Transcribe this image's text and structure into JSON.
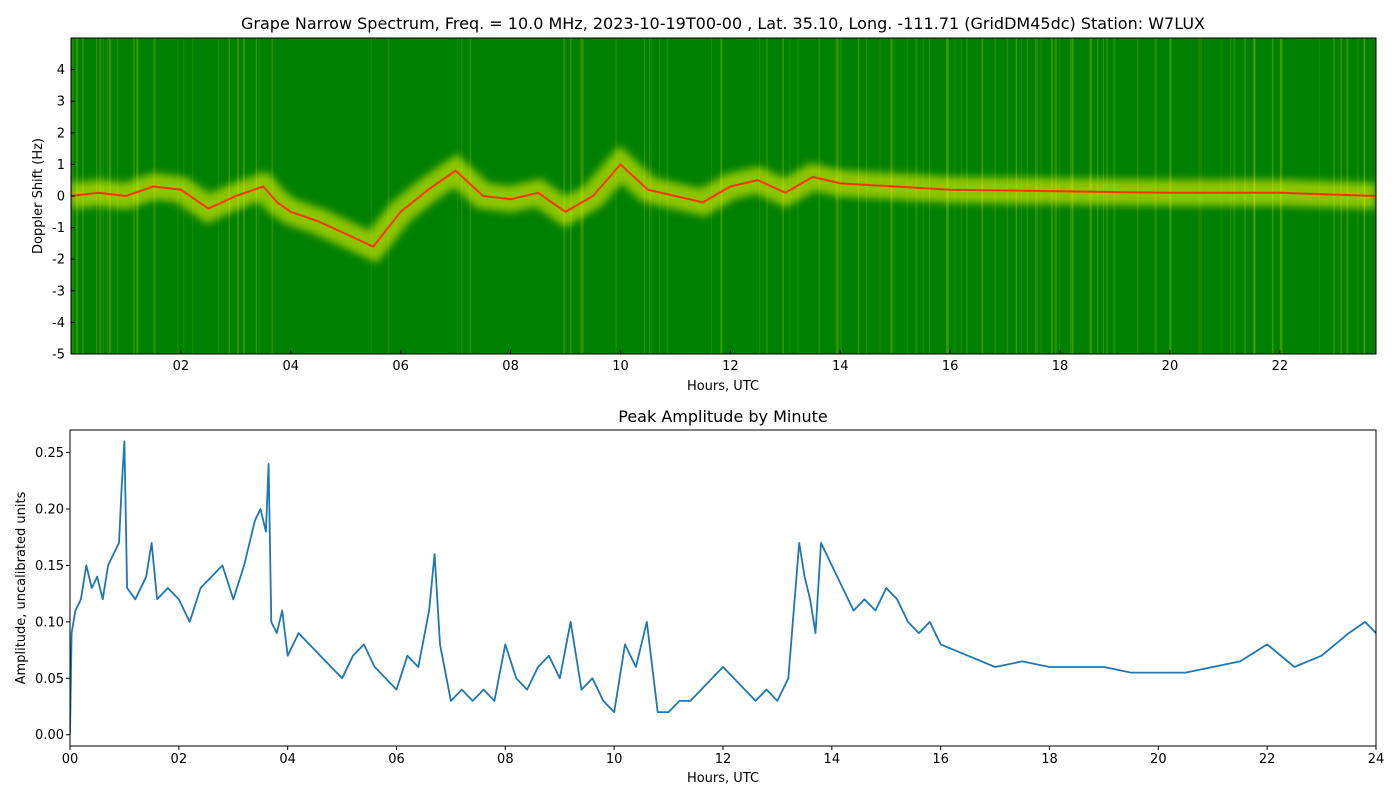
{
  "chart_data": [
    {
      "type": "heatmap",
      "title": "Grape Narrow Spectrum, Freq. = 10.0 MHz, 2023-10-19T00-00 , Lat.  35.10, Long. -111.71 (GridDM45dc) Station: W7LUX",
      "xlabel": "Hours, UTC",
      "ylabel": "Doppler Shift (Hz)",
      "xlim": [
        0,
        23.75
      ],
      "ylim": [
        -5,
        5
      ],
      "x_ticks": [
        "02",
        "04",
        "06",
        "08",
        "10",
        "12",
        "14",
        "16",
        "18",
        "20",
        "22"
      ],
      "x_tick_values": [
        2,
        4,
        6,
        8,
        10,
        12,
        14,
        16,
        18,
        20,
        22
      ],
      "y_ticks": [
        "4",
        "3",
        "2",
        "1",
        "0",
        "-1",
        "-2",
        "-3",
        "-4",
        "-5"
      ],
      "y_tick_values": [
        4,
        3,
        2,
        1,
        0,
        -1,
        -2,
        -3,
        -4,
        -5
      ],
      "colors": {
        "background": "#008000",
        "spread": "#ffff00",
        "peak": "#ff3300"
      },
      "grid": false,
      "carrier_trace": {
        "x": [
          0,
          0.5,
          1.0,
          1.5,
          2.0,
          2.5,
          3.0,
          3.5,
          3.75,
          4.0,
          4.5,
          5.0,
          5.5,
          6.0,
          6.5,
          7.0,
          7.5,
          8.0,
          8.5,
          9.0,
          9.5,
          10.0,
          10.5,
          11.0,
          11.5,
          12.0,
          12.5,
          13.0,
          13.5,
          14.0,
          15.0,
          16.0,
          18.0,
          20.0,
          22.0,
          23.75
        ],
        "y": [
          0.0,
          0.1,
          0.0,
          0.3,
          0.2,
          -0.4,
          0.0,
          0.3,
          -0.2,
          -0.5,
          -0.8,
          -1.2,
          -1.6,
          -0.5,
          0.2,
          0.8,
          0.0,
          -0.1,
          0.1,
          -0.5,
          0.0,
          1.0,
          0.2,
          0.0,
          -0.2,
          0.3,
          0.5,
          0.1,
          0.6,
          0.4,
          0.3,
          0.2,
          0.15,
          0.1,
          0.1,
          0.0
        ]
      }
    },
    {
      "type": "line",
      "title": "Peak Amplitude by Minute",
      "xlabel": "Hours, UTC",
      "ylabel": "Amplitude, uncalibrated units",
      "xlim": [
        0,
        24
      ],
      "ylim": [
        -0.01,
        0.27
      ],
      "x_ticks": [
        "00",
        "02",
        "04",
        "06",
        "08",
        "10",
        "12",
        "14",
        "16",
        "18",
        "20",
        "22",
        "24"
      ],
      "x_tick_values": [
        0,
        2,
        4,
        6,
        8,
        10,
        12,
        14,
        16,
        18,
        20,
        22,
        24
      ],
      "y_ticks": [
        "0.00",
        "0.05",
        "0.10",
        "0.15",
        "0.20",
        "0.25"
      ],
      "y_tick_values": [
        0,
        0.05,
        0.1,
        0.15,
        0.2,
        0.25
      ],
      "grid": false,
      "colors": {
        "line": "#1f77b4"
      },
      "series": [
        {
          "x": [
            0,
            0.03,
            0.1,
            0.2,
            0.3,
            0.4,
            0.5,
            0.6,
            0.7,
            0.8,
            0.9,
            0.95,
            1.0,
            1.05,
            1.2,
            1.4,
            1.5,
            1.6,
            1.8,
            2.0,
            2.2,
            2.4,
            2.6,
            2.8,
            3.0,
            3.2,
            3.4,
            3.5,
            3.6,
            3.65,
            3.7,
            3.8,
            3.9,
            4.0,
            4.2,
            4.4,
            4.6,
            4.8,
            5.0,
            5.2,
            5.4,
            5.6,
            5.8,
            6.0,
            6.2,
            6.4,
            6.6,
            6.7,
            6.8,
            7.0,
            7.2,
            7.4,
            7.6,
            7.8,
            8.0,
            8.2,
            8.4,
            8.6,
            8.8,
            9.0,
            9.2,
            9.4,
            9.6,
            9.8,
            10.0,
            10.2,
            10.4,
            10.6,
            10.8,
            11.0,
            11.2,
            11.4,
            11.6,
            11.8,
            12.0,
            12.2,
            12.4,
            12.6,
            12.8,
            13.0,
            13.2,
            13.4,
            13.5,
            13.6,
            13.7,
            13.8,
            14.0,
            14.2,
            14.4,
            14.6,
            14.8,
            15.0,
            15.2,
            15.4,
            15.6,
            15.8,
            16.0,
            16.5,
            17.0,
            17.5,
            18.0,
            18.5,
            19.0,
            19.5,
            20.0,
            20.5,
            21.0,
            21.5,
            22.0,
            22.5,
            23.0,
            23.5,
            23.8,
            24.0
          ],
          "values": [
            0.0,
            0.09,
            0.11,
            0.12,
            0.15,
            0.13,
            0.14,
            0.12,
            0.15,
            0.16,
            0.17,
            0.22,
            0.26,
            0.13,
            0.12,
            0.14,
            0.17,
            0.12,
            0.13,
            0.12,
            0.1,
            0.13,
            0.14,
            0.15,
            0.12,
            0.15,
            0.19,
            0.2,
            0.18,
            0.24,
            0.1,
            0.09,
            0.11,
            0.07,
            0.09,
            0.08,
            0.07,
            0.06,
            0.05,
            0.07,
            0.08,
            0.06,
            0.05,
            0.04,
            0.07,
            0.06,
            0.11,
            0.16,
            0.08,
            0.03,
            0.04,
            0.03,
            0.04,
            0.03,
            0.08,
            0.05,
            0.04,
            0.06,
            0.07,
            0.05,
            0.1,
            0.04,
            0.05,
            0.03,
            0.02,
            0.08,
            0.06,
            0.1,
            0.02,
            0.02,
            0.03,
            0.03,
            0.04,
            0.05,
            0.06,
            0.05,
            0.04,
            0.03,
            0.04,
            0.03,
            0.05,
            0.17,
            0.14,
            0.12,
            0.09,
            0.17,
            0.15,
            0.13,
            0.11,
            0.12,
            0.11,
            0.13,
            0.12,
            0.1,
            0.09,
            0.1,
            0.08,
            0.07,
            0.06,
            0.065,
            0.06,
            0.06,
            0.06,
            0.055,
            0.055,
            0.055,
            0.06,
            0.065,
            0.08,
            0.06,
            0.07,
            0.09,
            0.1,
            0.09
          ]
        }
      ]
    }
  ]
}
